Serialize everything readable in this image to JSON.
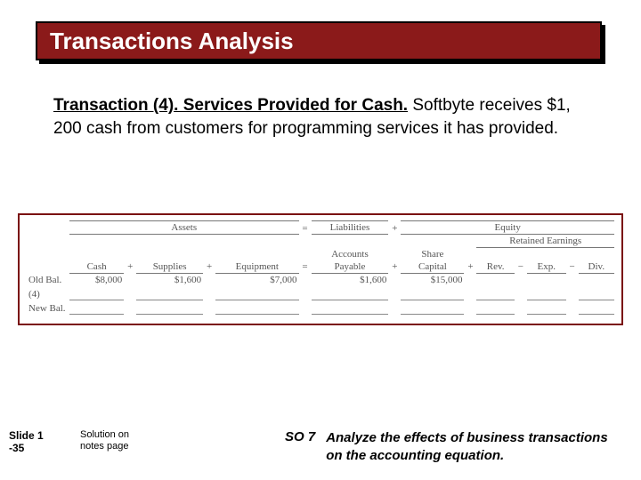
{
  "title": "Transactions Analysis",
  "body": {
    "lead": "Transaction (4).  Services Provided for Cash.",
    "rest": "  Softbyte receives $1, 200 cash from customers for programming services it has provided."
  },
  "table": {
    "sections": {
      "assets": "Assets",
      "liab": "Liabilities",
      "equity": "Equity"
    },
    "ops": {
      "eq": "=",
      "plus": "+",
      "minus": "−"
    },
    "cols": {
      "cash": "Cash",
      "supplies": "Supplies",
      "equip": "Equipment",
      "ap1": "Accounts",
      "ap2": "Payable",
      "sc1": "Share",
      "sc2": "Capital",
      "re": "Retained Earnings",
      "rev": "Rev.",
      "exp": "Exp.",
      "div": "Div."
    },
    "rows": {
      "old": {
        "label": "Old Bal.",
        "cash": "$8,000",
        "supplies": "$1,600",
        "equip": "$7,000",
        "ap": "$1,600",
        "sc": "$15,000"
      },
      "tx": {
        "label": "(4)"
      },
      "new": {
        "label": "New Bal."
      }
    }
  },
  "footer": {
    "slide1": "Slide 1",
    "slide2": "-35",
    "sol1": "Solution on",
    "sol2": "notes page",
    "so": "SO 7",
    "so_text": "Analyze the effects of business transactions on the accounting equation."
  }
}
